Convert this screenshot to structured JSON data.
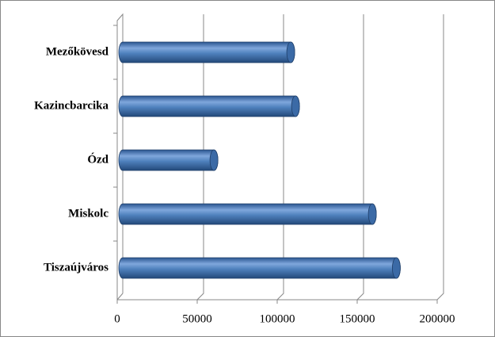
{
  "chart_data": {
    "type": "bar",
    "orientation": "horizontal",
    "categories": [
      "Mezőkövesd",
      "Kazincbarcika",
      "Ózd",
      "Miskolc",
      "Tiszaújváros"
    ],
    "values": [
      105000,
      108000,
      57000,
      156000,
      171000
    ],
    "color": "#4f81bd",
    "xlim": [
      0,
      200000
    ],
    "xticks": [
      0,
      50000,
      100000,
      150000,
      200000
    ],
    "grid": true
  }
}
